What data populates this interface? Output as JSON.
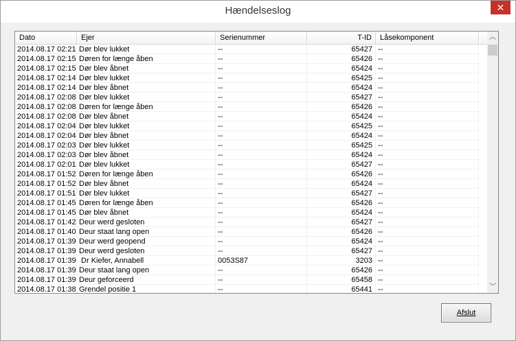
{
  "window": {
    "title": "Hændelseslog",
    "close_icon": "close-icon"
  },
  "table": {
    "columns": [
      "Dato",
      "Ejer",
      "Serienummer",
      "T-ID",
      "Låsekomponent"
    ],
    "rows": [
      [
        "2014.08.17 02:21",
        "Dør blev lukket",
        "--",
        "65427",
        "--"
      ],
      [
        "2014.08.17 02:15",
        "Døren for længe åben",
        "--",
        "65426",
        "--"
      ],
      [
        "2014.08.17 02:15",
        "Dør blev åbnet",
        "--",
        "65424",
        "--"
      ],
      [
        "2014.08.17 02:14",
        "Dør blev lukket",
        "--",
        "65425",
        "--"
      ],
      [
        "2014.08.17 02:14",
        "Dør blev åbnet",
        "--",
        "65424",
        "--"
      ],
      [
        "2014.08.17 02:08",
        "Dør blev lukket",
        "--",
        "65427",
        "--"
      ],
      [
        "2014.08.17 02:08",
        "Døren for længe åben",
        "--",
        "65426",
        "--"
      ],
      [
        "2014.08.17 02:08",
        "Dør blev åbnet",
        "--",
        "65424",
        "--"
      ],
      [
        "2014.08.17 02:04",
        "Dør blev lukket",
        "--",
        "65425",
        "--"
      ],
      [
        "2014.08.17 02:04",
        "Dør blev åbnet",
        "--",
        "65424",
        "--"
      ],
      [
        "2014.08.17 02:03",
        "Dør blev lukket",
        "--",
        "65425",
        "--"
      ],
      [
        "2014.08.17 02:03",
        "Dør blev åbnet",
        "--",
        "65424",
        "--"
      ],
      [
        "2014.08.17 02:01",
        "Dør blev lukket",
        "--",
        "65427",
        "--"
      ],
      [
        "2014.08.17 01:52",
        "Døren for længe åben",
        "--",
        "65426",
        "--"
      ],
      [
        "2014.08.17 01:52",
        "Dør blev åbnet",
        "--",
        "65424",
        "--"
      ],
      [
        "2014.08.17 01:51",
        "Dør blev lukket",
        "--",
        "65427",
        "--"
      ],
      [
        "2014.08.17 01:45",
        "Døren for længe åben",
        "--",
        "65426",
        "--"
      ],
      [
        "2014.08.17 01:45",
        "Dør blev åbnet",
        "--",
        "65424",
        "--"
      ],
      [
        "2014.08.17 01:42",
        "Deur werd gesloten",
        "--",
        "65427",
        "--"
      ],
      [
        "2014.08.17 01:40",
        "Deur staat lang open",
        "--",
        "65426",
        "--"
      ],
      [
        "2014.08.17 01:39",
        "Deur werd geopend",
        "--",
        "65424",
        "--"
      ],
      [
        "2014.08.17 01:39",
        "Deur werd gesloten",
        "--",
        "65427",
        "--"
      ],
      [
        "2014.08.17 01:39",
        " Dr Kiefer, Annabell",
        "0053S87",
        "3203",
        "--"
      ],
      [
        "2014.08.17 01:39",
        "Deur staat lang open",
        "--",
        "65426",
        "--"
      ],
      [
        "2014.08.17 01:39",
        "Deur geforceerd",
        "--",
        "65458",
        "--"
      ],
      [
        "2014.08.17 01:38",
        "Grendel positie 1",
        "--",
        "65441",
        "--"
      ]
    ]
  },
  "buttons": {
    "close_label": "Afslut"
  }
}
